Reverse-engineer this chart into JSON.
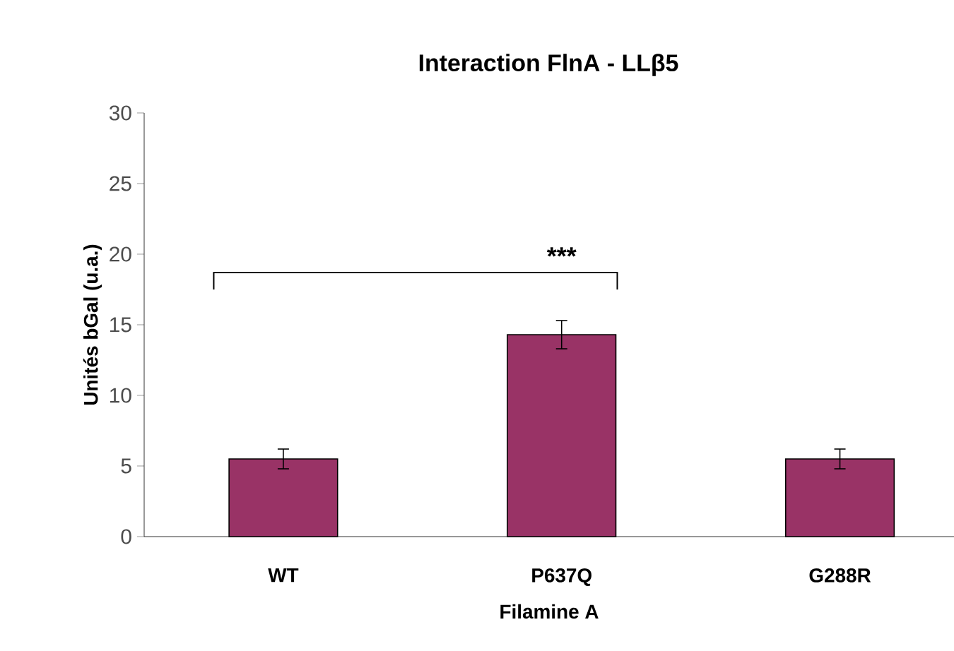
{
  "chart_data": {
    "type": "bar",
    "title": "Interaction FlnA - LLβ5",
    "xlabel": "Filamine A",
    "ylabel": "Unités bGal (u.a.)",
    "categories": [
      "WT",
      "P637Q",
      "G288R"
    ],
    "values": [
      5.5,
      14.3,
      5.5
    ],
    "errors": [
      0.7,
      1.0,
      0.7
    ],
    "color": "#993366",
    "ylim": [
      0,
      30
    ],
    "yticks": [
      0,
      5,
      10,
      15,
      20,
      25,
      30
    ],
    "annotations": [
      "***"
    ]
  }
}
